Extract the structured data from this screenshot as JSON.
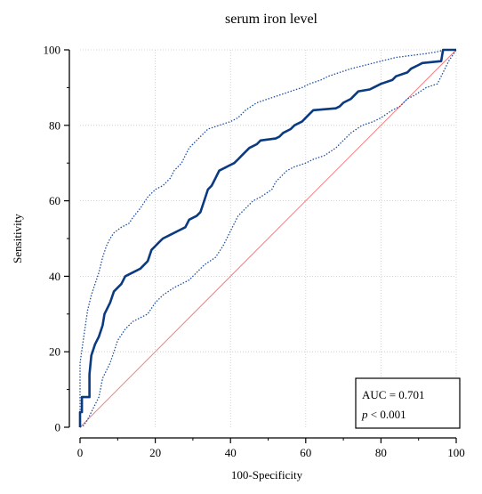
{
  "chart_data": {
    "type": "line",
    "title": "serum iron level",
    "xlabel": "100-Specificity",
    "ylabel": "Sensitivity",
    "xlim": [
      0,
      100
    ],
    "ylim": [
      0,
      100
    ],
    "x_ticks": [
      0,
      20,
      40,
      60,
      80,
      100
    ],
    "y_ticks": [
      0,
      20,
      40,
      60,
      80,
      100
    ],
    "grid": true,
    "annotation": {
      "auc": "AUC = 0.701",
      "p_symbol": "p",
      "p_rest": " < 0.001"
    },
    "colors": {
      "roc": "#0a3a82",
      "ci": "#1f4fa0",
      "reference": "#f08080",
      "grid": "#c8c8c8"
    },
    "series": [
      {
        "role": "roc-curve",
        "style": "solid",
        "points": [
          [
            0,
            0
          ],
          [
            0,
            4
          ],
          [
            0.5,
            4
          ],
          [
            0.5,
            8
          ],
          [
            2.5,
            8
          ],
          [
            2.5,
            14
          ],
          [
            3,
            19
          ],
          [
            4,
            22
          ],
          [
            5,
            24
          ],
          [
            6,
            27
          ],
          [
            6.5,
            30
          ],
          [
            8,
            33
          ],
          [
            9,
            36
          ],
          [
            11,
            38
          ],
          [
            12,
            40
          ],
          [
            14,
            41
          ],
          [
            16,
            42
          ],
          [
            17,
            43
          ],
          [
            18,
            44
          ],
          [
            19,
            47
          ],
          [
            20,
            48
          ],
          [
            21,
            49
          ],
          [
            22,
            50
          ],
          [
            24,
            51
          ],
          [
            26,
            52
          ],
          [
            28,
            53
          ],
          [
            29,
            55
          ],
          [
            31,
            56
          ],
          [
            32,
            57
          ],
          [
            33,
            60
          ],
          [
            34,
            63
          ],
          [
            35,
            64
          ],
          [
            36,
            66
          ],
          [
            37,
            68
          ],
          [
            39,
            69
          ],
          [
            41,
            70
          ],
          [
            42,
            71
          ],
          [
            43,
            72
          ],
          [
            45,
            74
          ],
          [
            47,
            75
          ],
          [
            48,
            76
          ],
          [
            52,
            76.5
          ],
          [
            53,
            77
          ],
          [
            54,
            78
          ],
          [
            56,
            79
          ],
          [
            57,
            80
          ],
          [
            59,
            81
          ],
          [
            60,
            82
          ],
          [
            61,
            83
          ],
          [
            62,
            84
          ],
          [
            68,
            84.5
          ],
          [
            69,
            85
          ],
          [
            70,
            86
          ],
          [
            72,
            87
          ],
          [
            74,
            89
          ],
          [
            77,
            89.5
          ],
          [
            78,
            90
          ],
          [
            80,
            91
          ],
          [
            83,
            92
          ],
          [
            84,
            93
          ],
          [
            87,
            94
          ],
          [
            88,
            95
          ],
          [
            90,
            96
          ],
          [
            91,
            96.5
          ],
          [
            96,
            97
          ],
          [
            96.5,
            100
          ],
          [
            100,
            100
          ]
        ]
      },
      {
        "role": "ci-upper",
        "style": "dotted",
        "points": [
          [
            0,
            3
          ],
          [
            0,
            17
          ],
          [
            1,
            24
          ],
          [
            2,
            31
          ],
          [
            3,
            35
          ],
          [
            4,
            38
          ],
          [
            5,
            41
          ],
          [
            6,
            45
          ],
          [
            7,
            48
          ],
          [
            8,
            50
          ],
          [
            9,
            51.5
          ],
          [
            11,
            53
          ],
          [
            13,
            54
          ],
          [
            14,
            55.5
          ],
          [
            16,
            58
          ],
          [
            18,
            61
          ],
          [
            20,
            63
          ],
          [
            22,
            64
          ],
          [
            24,
            66
          ],
          [
            25,
            68
          ],
          [
            27,
            70
          ],
          [
            28,
            72
          ],
          [
            29,
            74
          ],
          [
            30,
            75
          ],
          [
            32,
            77
          ],
          [
            34,
            79
          ],
          [
            37,
            80
          ],
          [
            40,
            81
          ],
          [
            42,
            82
          ],
          [
            44,
            84
          ],
          [
            47,
            86
          ],
          [
            50,
            87
          ],
          [
            53,
            88
          ],
          [
            56,
            89
          ],
          [
            59,
            90
          ],
          [
            61,
            91
          ],
          [
            64,
            92
          ],
          [
            66,
            93
          ],
          [
            69,
            94
          ],
          [
            72,
            95
          ],
          [
            76,
            96
          ],
          [
            80,
            97
          ],
          [
            84,
            98
          ],
          [
            88,
            98.5
          ],
          [
            92,
            99
          ],
          [
            95,
            99.5
          ],
          [
            97,
            100
          ],
          [
            100,
            100
          ]
        ]
      },
      {
        "role": "ci-lower",
        "style": "dotted",
        "points": [
          [
            0,
            0
          ],
          [
            1,
            0.5
          ],
          [
            2,
            2
          ],
          [
            3,
            4
          ],
          [
            5,
            8
          ],
          [
            6,
            13
          ],
          [
            7,
            15
          ],
          [
            8,
            17
          ],
          [
            9,
            20
          ],
          [
            10,
            23
          ],
          [
            12,
            26
          ],
          [
            14,
            28
          ],
          [
            16,
            29
          ],
          [
            18,
            30
          ],
          [
            20,
            33
          ],
          [
            22,
            35
          ],
          [
            25,
            37
          ],
          [
            27,
            38
          ],
          [
            29,
            39
          ],
          [
            31,
            41
          ],
          [
            33,
            43
          ],
          [
            36,
            45
          ],
          [
            38,
            48
          ],
          [
            40,
            52
          ],
          [
            42,
            56
          ],
          [
            44,
            58
          ],
          [
            46,
            60
          ],
          [
            48,
            61
          ],
          [
            51,
            63
          ],
          [
            52,
            65
          ],
          [
            55,
            68
          ],
          [
            57,
            69
          ],
          [
            60,
            70
          ],
          [
            62,
            71
          ],
          [
            65,
            72
          ],
          [
            68,
            74
          ],
          [
            70,
            76
          ],
          [
            72,
            78
          ],
          [
            75,
            80
          ],
          [
            78,
            81
          ],
          [
            80,
            82
          ],
          [
            83,
            84
          ],
          [
            85,
            85
          ],
          [
            87,
            87
          ],
          [
            89,
            88
          ],
          [
            92,
            90
          ],
          [
            95,
            91
          ],
          [
            96,
            93
          ],
          [
            98,
            97
          ],
          [
            100,
            100
          ]
        ]
      },
      {
        "role": "reference-line",
        "style": "diagonal",
        "points": [
          [
            0,
            0
          ],
          [
            100,
            100
          ]
        ]
      }
    ]
  }
}
